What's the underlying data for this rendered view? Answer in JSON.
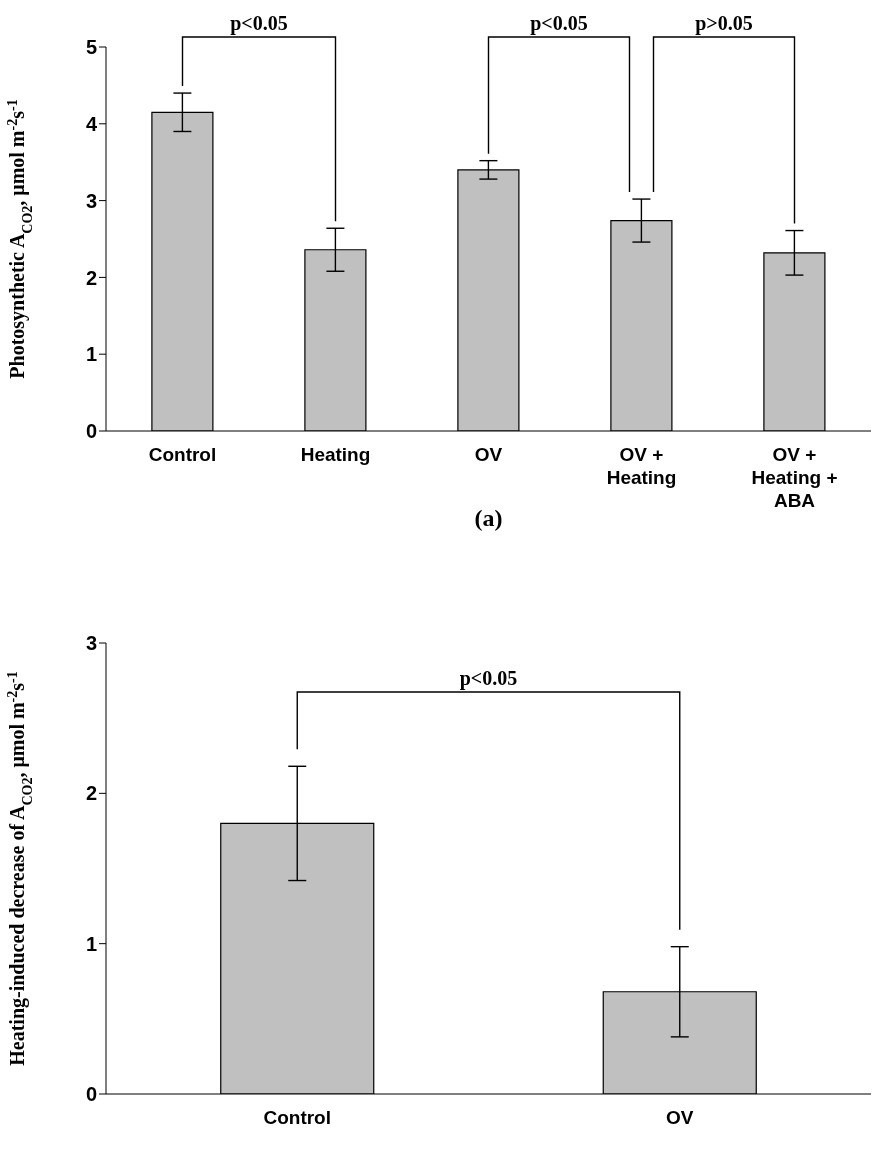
{
  "chart_data": [
    {
      "type": "bar",
      "title": "(a)",
      "ylabel": "Photosynthetic A$_{CO2}$, μmol m$^{-2}$s$^{-1}$",
      "categories": [
        "Control",
        "Heating",
        "OV",
        "OV + Heating",
        "OV + Heating + ABA"
      ],
      "values": [
        4.15,
        2.36,
        3.4,
        2.74,
        2.32
      ],
      "errors": [
        0.25,
        0.28,
        0.12,
        0.28,
        0.29
      ],
      "color": "#c0c0c0",
      "ylim": [
        0,
        5
      ],
      "yticks": [
        0,
        1,
        2,
        3,
        4,
        5
      ],
      "grid": false,
      "legend": false,
      "annotations": [
        "p<0.05",
        "p<0.05",
        "p>0.05"
      ]
    },
    {
      "type": "bar",
      "ylabel": "Heating-induced decrease of A$_{CO2}$, μmol m$^{-2}$s$^{-1}$",
      "categories": [
        "Control",
        "OV"
      ],
      "values": [
        1.8,
        0.68
      ],
      "errors": [
        0.38,
        0.3
      ],
      "color": "#c0c0c0",
      "ylim": [
        0,
        3
      ],
      "yticks": [
        0,
        1,
        2,
        3
      ],
      "grid": false,
      "legend": false,
      "annotations": [
        "p<0.05"
      ]
    }
  ]
}
